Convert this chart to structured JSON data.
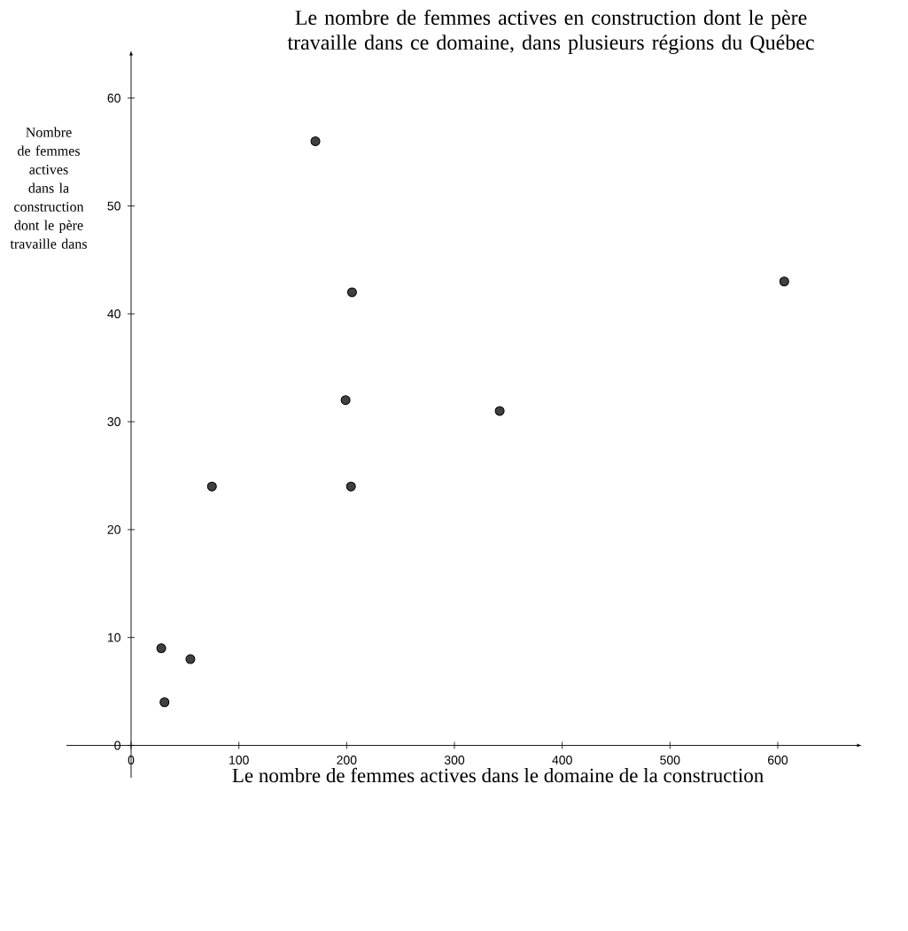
{
  "chart_data": {
    "type": "scatter",
    "title": "Le nombre de femmes actives en construction dont le père travaille dans ce domaine, dans plusieurs régions du Québec",
    "xlabel": "Le nombre de femmes actives dans le domaine de la construction",
    "ylabel": "Nombre de femmes actives dans la construction dont le père travaille dans",
    "x": [
      28,
      31,
      55,
      75,
      199,
      204,
      342,
      171,
      205,
      606
    ],
    "values": [
      9,
      4,
      8,
      24,
      32,
      24,
      31,
      56,
      42,
      43
    ],
    "color": "#404040",
    "xlim": [
      -60,
      674
    ],
    "ylim": [
      -3,
      64
    ],
    "xticks": [
      0,
      100,
      200,
      300,
      400,
      500,
      600
    ],
    "yticks": [
      0,
      10,
      20,
      30,
      40,
      50,
      60
    ]
  }
}
